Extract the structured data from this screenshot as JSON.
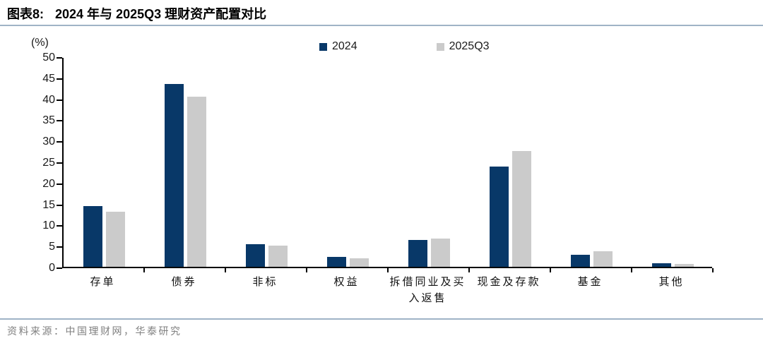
{
  "header": {
    "figure_label": "图表8:",
    "title": "2024 年与 2025Q3 理财资产配置对比"
  },
  "chart_data": {
    "type": "bar",
    "title": "2024 年与 2025Q3 理财资产配置对比",
    "unit_label": "(%)",
    "xlabel": "",
    "ylabel": "(%)",
    "ylim": [
      0,
      50
    ],
    "ytick_step": 5,
    "grid": false,
    "legend_position": "top-center",
    "categories": [
      "存单",
      "债券",
      "非标",
      "权益",
      "拆借同业及买\n入返售",
      "现金及存款",
      "基金",
      "其他"
    ],
    "series": [
      {
        "name": "2024",
        "color": "#083868",
        "values": [
          14.4,
          43.5,
          5.3,
          2.4,
          6.4,
          23.8,
          2.8,
          0.8
        ]
      },
      {
        "name": "2025Q3",
        "color": "#CBCBCB",
        "values": [
          13.1,
          40.4,
          5.0,
          2.0,
          6.7,
          27.5,
          3.7,
          0.7
        ]
      }
    ]
  },
  "footer": {
    "source": "资料来源：中国理财网，华泰研究"
  },
  "colors": {
    "accent_rule": "#9FB3C6",
    "axis": "#000000",
    "source_text": "#808080",
    "title_text": "#000000"
  }
}
